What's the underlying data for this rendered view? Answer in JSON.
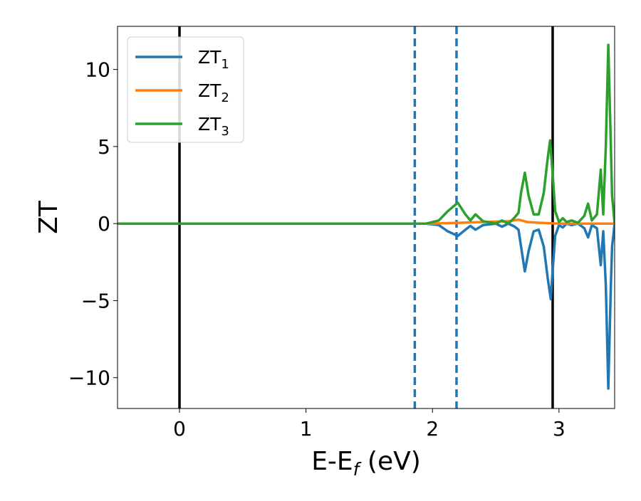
{
  "chart_data": {
    "type": "line",
    "title": "",
    "xlabel": "E-E",
    "xlabel_sub": "f",
    "xlabel_unit": " (eV)",
    "ylabel": "ZT",
    "xlim": [
      -0.49,
      3.44
    ],
    "ylim": [
      -12.0,
      12.8
    ],
    "xticks": [
      0,
      1,
      2,
      3
    ],
    "yticks": [
      -10,
      -5,
      0,
      5,
      10
    ],
    "xtick_labels": [
      "0",
      "1",
      "2",
      "3"
    ],
    "ytick_labels": [
      "−10",
      "−5",
      "0",
      "5",
      "10"
    ],
    "grid": false,
    "legend_position": "top-left",
    "vlines": [
      {
        "x": 0.0,
        "style": "solid",
        "color": "#000000"
      },
      {
        "x": 1.86,
        "style": "dashed",
        "color": "#1f77b4"
      },
      {
        "x": 2.19,
        "style": "dashed",
        "color": "#1f77b4"
      },
      {
        "x": 2.95,
        "style": "solid",
        "color": "#000000"
      }
    ],
    "series": [
      {
        "name": "ZT",
        "sub": "1",
        "color": "#1f77b4",
        "points": [
          [
            -0.49,
            0
          ],
          [
            1.95,
            0
          ],
          [
            2.05,
            -0.1
          ],
          [
            2.12,
            -0.5
          ],
          [
            2.2,
            -0.8
          ],
          [
            2.26,
            -0.4
          ],
          [
            2.3,
            -0.15
          ],
          [
            2.34,
            -0.4
          ],
          [
            2.4,
            -0.1
          ],
          [
            2.5,
            0
          ],
          [
            2.55,
            -0.2
          ],
          [
            2.6,
            0
          ],
          [
            2.65,
            -0.2
          ],
          [
            2.68,
            -0.4
          ],
          [
            2.7,
            -1.5
          ],
          [
            2.73,
            -3.1
          ],
          [
            2.76,
            -1.8
          ],
          [
            2.8,
            -0.5
          ],
          [
            2.84,
            -0.4
          ],
          [
            2.88,
            -1.5
          ],
          [
            2.91,
            -3.5
          ],
          [
            2.935,
            -4.9
          ],
          [
            2.95,
            -3.0
          ],
          [
            2.97,
            -0.8
          ],
          [
            3.0,
            -0.1
          ],
          [
            3.03,
            -0.25
          ],
          [
            3.06,
            0
          ],
          [
            3.1,
            -0.1
          ],
          [
            3.15,
            0
          ],
          [
            3.2,
            -0.3
          ],
          [
            3.23,
            -0.9
          ],
          [
            3.26,
            -0.1
          ],
          [
            3.3,
            -0.3
          ],
          [
            3.33,
            -2.7
          ],
          [
            3.35,
            -0.5
          ],
          [
            3.37,
            -4.0
          ],
          [
            3.39,
            -10.7
          ],
          [
            3.41,
            -4.0
          ],
          [
            3.42,
            -1.5
          ],
          [
            3.44,
            0
          ]
        ]
      },
      {
        "name": "ZT",
        "sub": "2",
        "color": "#ff7f0e",
        "points": [
          [
            -0.49,
            0
          ],
          [
            2.0,
            0
          ],
          [
            2.2,
            0.05
          ],
          [
            2.4,
            0.1
          ],
          [
            2.6,
            0.15
          ],
          [
            2.68,
            0.25
          ],
          [
            2.75,
            0.1
          ],
          [
            2.85,
            0.05
          ],
          [
            3.0,
            0
          ],
          [
            3.44,
            0
          ]
        ]
      },
      {
        "name": "ZT",
        "sub": "3",
        "color": "#2ca02c",
        "points": [
          [
            -0.49,
            0
          ],
          [
            1.95,
            0
          ],
          [
            2.05,
            0.2
          ],
          [
            2.12,
            0.8
          ],
          [
            2.2,
            1.35
          ],
          [
            2.26,
            0.6
          ],
          [
            2.3,
            0.2
          ],
          [
            2.34,
            0.6
          ],
          [
            2.4,
            0.15
          ],
          [
            2.5,
            0
          ],
          [
            2.55,
            0.2
          ],
          [
            2.6,
            0
          ],
          [
            2.65,
            0.4
          ],
          [
            2.68,
            0.7
          ],
          [
            2.7,
            2.0
          ],
          [
            2.73,
            3.3
          ],
          [
            2.76,
            1.8
          ],
          [
            2.8,
            0.6
          ],
          [
            2.84,
            0.6
          ],
          [
            2.88,
            2.0
          ],
          [
            2.91,
            4.2
          ],
          [
            2.93,
            5.4
          ],
          [
            2.95,
            3.2
          ],
          [
            2.97,
            0.8
          ],
          [
            3.0,
            0.1
          ],
          [
            3.03,
            0.35
          ],
          [
            3.06,
            0.1
          ],
          [
            3.1,
            0.2
          ],
          [
            3.15,
            0.05
          ],
          [
            3.2,
            0.5
          ],
          [
            3.23,
            1.3
          ],
          [
            3.26,
            0.2
          ],
          [
            3.3,
            0.6
          ],
          [
            3.33,
            3.5
          ],
          [
            3.35,
            0.6
          ],
          [
            3.37,
            5.0
          ],
          [
            3.39,
            11.6
          ],
          [
            3.41,
            5.0
          ],
          [
            3.42,
            1.8
          ],
          [
            3.44,
            0
          ]
        ]
      }
    ]
  }
}
